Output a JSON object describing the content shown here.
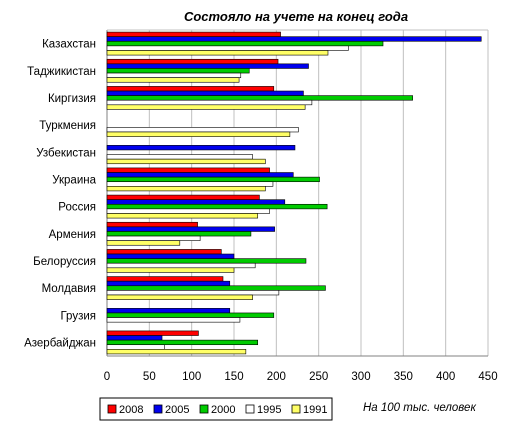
{
  "chart_data": {
    "type": "bar",
    "orientation": "horizontal",
    "title": "Состояло на учете на конец года",
    "note": "На 100 тыс. человек",
    "categories": [
      "Казахстан",
      "Таджикистан",
      "Киргизия",
      "Туркмения",
      "Узбекистан",
      "Украина",
      "Россия",
      "Армения",
      "Белоруссия",
      "Молдавия",
      "Грузия",
      "Азербайджан"
    ],
    "xlim": [
      0,
      450
    ],
    "xticks": [
      0,
      50,
      100,
      150,
      200,
      250,
      300,
      350,
      400,
      450
    ],
    "grid": true,
    "legend_position": "bottom",
    "series": [
      {
        "name": "2008",
        "color": "#ff0000",
        "values": [
          205,
          202,
          197,
          null,
          null,
          192,
          180,
          107,
          135,
          137,
          null,
          108
        ]
      },
      {
        "name": "2005",
        "color": "#0000ee",
        "values": [
          442,
          238,
          232,
          null,
          222,
          220,
          210,
          198,
          150,
          145,
          145,
          65
        ]
      },
      {
        "name": "2000",
        "color": "#00cc00",
        "values": [
          326,
          168,
          361,
          null,
          null,
          251,
          260,
          170,
          235,
          258,
          197,
          178
        ]
      },
      {
        "name": "1995",
        "color": "#ffffff",
        "values": [
          285,
          158,
          242,
          226,
          172,
          196,
          192,
          110,
          175,
          203,
          157,
          68
        ]
      },
      {
        "name": "1991",
        "color": "#ffff66",
        "values": [
          261,
          156,
          234,
          216,
          187,
          187,
          178,
          86,
          150,
          172,
          null,
          164
        ]
      }
    ]
  }
}
